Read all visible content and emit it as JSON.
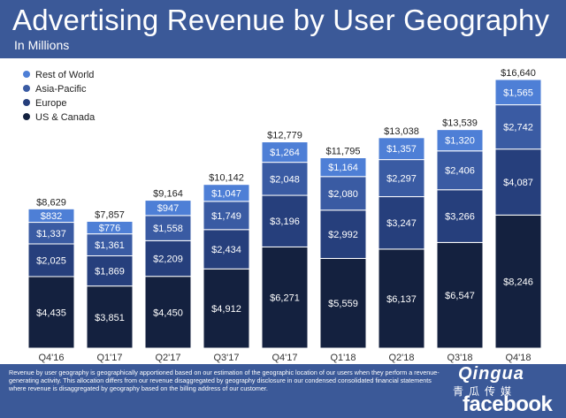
{
  "header": {
    "title": "Advertising Revenue by User Geography",
    "subtitle": "In Millions"
  },
  "footer": {
    "footnote": "Revenue by user geography is geographically apportioned based on our estimation of the geographic location of our users when they perform a revenue-generating activity. This allocation differs from our revenue disaggregated by geography disclosure in our condensed consolidated financial statements where revenue is disaggregated by geography based on the billing address of our customer.",
    "watermark_cn_top": "Qingua",
    "watermark_cn_bottom": "青瓜传媒",
    "watermark_brand": "facebook"
  },
  "colors": {
    "header_bg": "#3b5998",
    "rest_of_world": "#4e7fd6",
    "asia_pacific": "#3a5ba3",
    "europe": "#263f7c",
    "us_canada": "#14213f"
  },
  "chart_data": {
    "type": "bar",
    "stacked": true,
    "title": "Advertising Revenue by User Geography",
    "subtitle": "In Millions",
    "categories": [
      "Q4'16",
      "Q1'17",
      "Q2'17",
      "Q3'17",
      "Q4'17",
      "Q1'18",
      "Q2'18",
      "Q3'18",
      "Q4'18"
    ],
    "series": [
      {
        "name": "US & Canada",
        "labels": [
          "$4,435",
          "$3,851",
          "$4,450",
          "$4,912",
          "$6,271",
          "$5,559",
          "$6,137",
          "$6,547",
          "$8,246"
        ],
        "values": [
          4435,
          3851,
          4450,
          4912,
          6271,
          5559,
          6137,
          6547,
          8246
        ],
        "color": "#14213f"
      },
      {
        "name": "Europe",
        "labels": [
          "$2,025",
          "$1,869",
          "$2,209",
          "$2,434",
          "$3,196",
          "$2,992",
          "$3,247",
          "$3,266",
          "$4,087"
        ],
        "values": [
          2025,
          1869,
          2209,
          2434,
          3196,
          2992,
          3247,
          3266,
          4087
        ],
        "color": "#263f7c"
      },
      {
        "name": "Asia-Pacific",
        "labels": [
          "$1,337",
          "$1,361",
          "$1,558",
          "$1,749",
          "$2,048",
          "$2,080",
          "$2,297",
          "$2,406",
          "$2,742"
        ],
        "values": [
          1337,
          1361,
          1558,
          1749,
          2048,
          2080,
          2297,
          2406,
          2742
        ],
        "color": "#3a5ba3"
      },
      {
        "name": "Rest of World",
        "labels": [
          "$832",
          "$776",
          "$947",
          "$1,047",
          "$1,264",
          "$1,164",
          "$1,357",
          "$1,320",
          "$1,565"
        ],
        "values": [
          832,
          776,
          947,
          1047,
          1264,
          1164,
          1357,
          1320,
          1565
        ],
        "color": "#4e7fd6"
      }
    ],
    "totals": [
      8629,
      7857,
      9164,
      10142,
      12779,
      11795,
      13038,
      13539,
      16640
    ],
    "total_labels": [
      "$8,629",
      "$7,857",
      "$9,164",
      "$10,142",
      "$12,779",
      "$11,795",
      "$13,038",
      "$13,539",
      "$16,640"
    ],
    "legend": {
      "position": "top-left",
      "entries": [
        "Rest of World",
        "Asia-Pacific",
        "Europe",
        "US & Canada"
      ]
    },
    "xlabel": "",
    "ylabel": "",
    "ylim": [
      0,
      16640
    ],
    "grid": false
  }
}
